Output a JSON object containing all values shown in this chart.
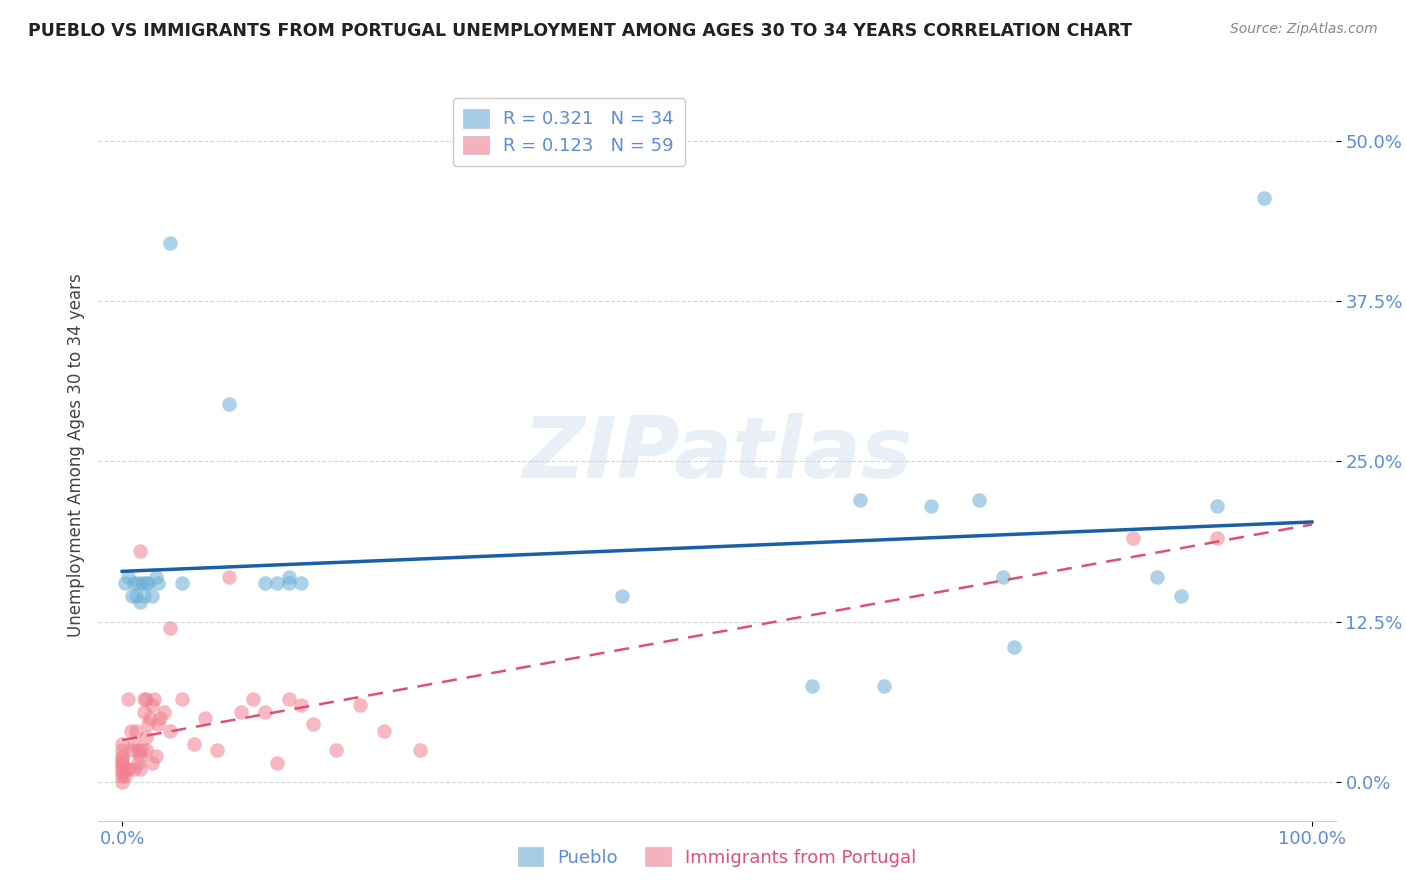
{
  "title": "PUEBLO VS IMMIGRANTS FROM PORTUGAL UNEMPLOYMENT AMONG AGES 30 TO 34 YEARS CORRELATION CHART",
  "source": "Source: ZipAtlas.com",
  "ylabel": "Unemployment Among Ages 30 to 34 years",
  "xlim": [
    -0.02,
    1.02
  ],
  "ylim": [
    -0.03,
    0.54
  ],
  "yticks": [
    0.0,
    0.125,
    0.25,
    0.375,
    0.5
  ],
  "ytick_labels": [
    "0.0%",
    "12.5%",
    "25.0%",
    "37.5%",
    "50.0%"
  ],
  "xticks": [
    0.0,
    1.0
  ],
  "xtick_labels": [
    "0.0%",
    "100.0%"
  ],
  "legend_R1": "0.321",
  "legend_N1": "34",
  "legend_R2": "0.123",
  "legend_N2": "59",
  "legend_label1": "Pueblo",
  "legend_label2": "Immigrants from Portugal",
  "pueblo_color": "#6aaed6",
  "portugal_color": "#f08090",
  "trendline1_color": "#1a5fa8",
  "trendline2_color": "#e05070",
  "watermark": "ZIPatlas",
  "pueblo_x": [
    0.002,
    0.005,
    0.008,
    0.01,
    0.012,
    0.013,
    0.015,
    0.017,
    0.018,
    0.02,
    0.022,
    0.025,
    0.028,
    0.03,
    0.04,
    0.05,
    0.09,
    0.12,
    0.13,
    0.14,
    0.14,
    0.15,
    0.42,
    0.58,
    0.62,
    0.64,
    0.68,
    0.72,
    0.74,
    0.75,
    0.87,
    0.89,
    0.92,
    0.96
  ],
  "pueblo_y": [
    0.155,
    0.16,
    0.145,
    0.155,
    0.145,
    0.155,
    0.14,
    0.155,
    0.145,
    0.155,
    0.155,
    0.145,
    0.16,
    0.155,
    0.42,
    0.155,
    0.295,
    0.155,
    0.155,
    0.155,
    0.16,
    0.155,
    0.145,
    0.075,
    0.22,
    0.075,
    0.215,
    0.22,
    0.16,
    0.105,
    0.16,
    0.145,
    0.215,
    0.455
  ],
  "portugal_x": [
    0.0,
    0.0,
    0.0,
    0.0,
    0.0,
    0.0,
    0.0,
    0.0,
    0.0,
    0.0,
    0.002,
    0.003,
    0.005,
    0.005,
    0.007,
    0.008,
    0.01,
    0.01,
    0.012,
    0.013,
    0.013,
    0.015,
    0.015,
    0.015,
    0.017,
    0.018,
    0.018,
    0.02,
    0.02,
    0.02,
    0.022,
    0.023,
    0.025,
    0.025,
    0.027,
    0.028,
    0.03,
    0.032,
    0.035,
    0.04,
    0.04,
    0.05,
    0.06,
    0.07,
    0.08,
    0.09,
    0.1,
    0.11,
    0.12,
    0.13,
    0.14,
    0.15,
    0.16,
    0.18,
    0.2,
    0.22,
    0.25,
    0.85,
    0.92
  ],
  "portugal_y": [
    0.0,
    0.005,
    0.008,
    0.01,
    0.013,
    0.015,
    0.018,
    0.02,
    0.025,
    0.03,
    0.005,
    0.01,
    0.01,
    0.065,
    0.04,
    0.025,
    0.01,
    0.03,
    0.04,
    0.015,
    0.025,
    0.01,
    0.02,
    0.18,
    0.025,
    0.055,
    0.065,
    0.025,
    0.035,
    0.065,
    0.045,
    0.05,
    0.015,
    0.06,
    0.065,
    0.02,
    0.045,
    0.05,
    0.055,
    0.04,
    0.12,
    0.065,
    0.03,
    0.05,
    0.025,
    0.16,
    0.055,
    0.065,
    0.055,
    0.015,
    0.065,
    0.06,
    0.045,
    0.025,
    0.06,
    0.04,
    0.025,
    0.19,
    0.19
  ]
}
